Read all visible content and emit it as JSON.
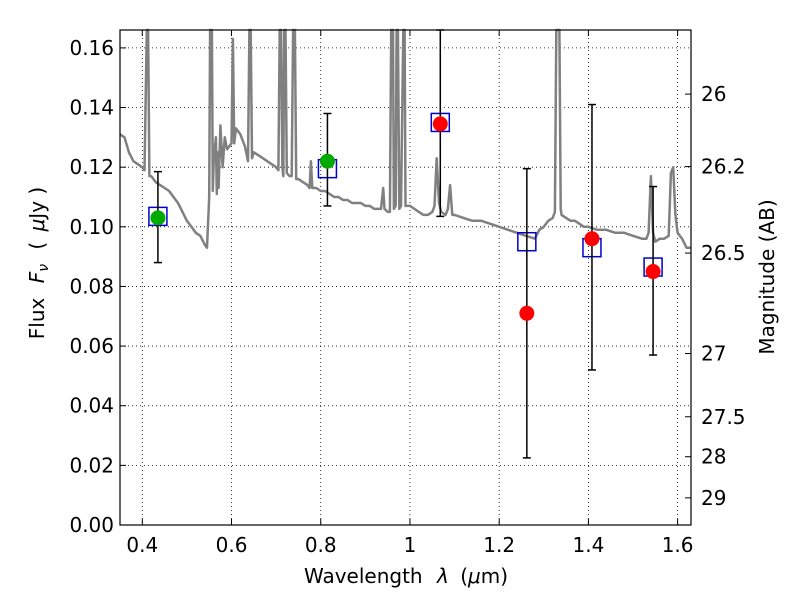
{
  "chart_data": {
    "type": "scatter",
    "xlabel": "Wavelength",
    "xlabel_symbol": "λ",
    "xlabel_unit_open": "(",
    "xlabel_unit_mu": "μ",
    "xlabel_unit_rest": "m)",
    "ylabel": "Flux",
    "ylabel_symbol_F": "F",
    "ylabel_symbol_sub": "ν",
    "ylabel_unit_open": "(",
    "ylabel_unit_mu": "μ",
    "ylabel_unit_rest": "Jy )",
    "y2label": "Magnitude (AB)",
    "xlim": [
      0.35,
      1.63
    ],
    "ylim": [
      0.0,
      0.166
    ],
    "x_ticks": [
      0.4,
      0.6,
      0.8,
      1.0,
      1.2,
      1.4,
      1.6
    ],
    "x_tick_labels": [
      "0.4",
      "0.6",
      "0.8",
      "1",
      "1.2",
      "1.4",
      "1.6"
    ],
    "y_ticks": [
      0.0,
      0.02,
      0.04,
      0.06,
      0.08,
      0.1,
      0.12,
      0.14,
      0.16
    ],
    "y_tick_labels": [
      "0.00",
      "0.02",
      "0.04",
      "0.06",
      "0.08",
      "0.10",
      "0.12",
      "0.14",
      "0.16"
    ],
    "y2_ticks": [
      {
        "label": "26",
        "flux": 0.1445
      },
      {
        "label": "26.2",
        "flux": 0.1202
      },
      {
        "label": "26.5",
        "flux": 0.0912
      },
      {
        "label": "27",
        "flux": 0.0575
      },
      {
        "label": "27.5",
        "flux": 0.0363
      },
      {
        "label": "28",
        "flux": 0.0229
      },
      {
        "label": "29",
        "flux": 0.0091
      }
    ],
    "grid": true,
    "grid_style": "dotted",
    "colors": {
      "spectrum": "#808080",
      "model_box": "#0000cc",
      "obs_green": "#00aa00",
      "obs_red": "#ff0000",
      "error_bar": "#000000"
    },
    "model_points": [
      {
        "x": 0.435,
        "y": 0.1035
      },
      {
        "x": 0.815,
        "y": 0.1195
      },
      {
        "x": 1.068,
        "y": 0.135
      },
      {
        "x": 1.262,
        "y": 0.095
      },
      {
        "x": 1.408,
        "y": 0.093
      },
      {
        "x": 1.545,
        "y": 0.0865
      }
    ],
    "observed_points": [
      {
        "x": 0.435,
        "y": 0.103,
        "yerr_low": 0.088,
        "yerr_high": 0.1185,
        "color": "green"
      },
      {
        "x": 0.815,
        "y": 0.122,
        "yerr_low": 0.107,
        "yerr_high": 0.138,
        "color": "green"
      },
      {
        "x": 1.068,
        "y": 0.1345,
        "yerr_low": 0.1035,
        "yerr_high": 0.1665,
        "color": "red"
      },
      {
        "x": 1.262,
        "y": 0.071,
        "yerr_low": 0.0225,
        "yerr_high": 0.1195,
        "color": "red"
      },
      {
        "x": 1.408,
        "y": 0.096,
        "yerr_low": 0.052,
        "yerr_high": 0.141,
        "color": "red"
      },
      {
        "x": 1.545,
        "y": 0.085,
        "yerr_low": 0.057,
        "yerr_high": 0.1135,
        "color": "red"
      }
    ],
    "spectrum": [
      [
        0.35,
        0.131
      ],
      [
        0.36,
        0.13
      ],
      [
        0.37,
        0.125
      ],
      [
        0.38,
        0.122
      ],
      [
        0.39,
        0.121
      ],
      [
        0.4,
        0.12
      ],
      [
        0.405,
        0.119
      ],
      [
        0.41,
        0.166
      ],
      [
        0.413,
        0.166
      ],
      [
        0.416,
        0.117
      ],
      [
        0.42,
        0.117
      ],
      [
        0.43,
        0.115
      ],
      [
        0.44,
        0.114
      ],
      [
        0.45,
        0.113
      ],
      [
        0.46,
        0.112
      ],
      [
        0.47,
        0.11
      ],
      [
        0.48,
        0.108
      ],
      [
        0.49,
        0.105
      ],
      [
        0.5,
        0.102
      ],
      [
        0.51,
        0.1
      ],
      [
        0.52,
        0.098
      ],
      [
        0.53,
        0.097
      ],
      [
        0.54,
        0.094
      ],
      [
        0.545,
        0.093
      ],
      [
        0.55,
        0.11
      ],
      [
        0.552,
        0.166
      ],
      [
        0.556,
        0.166
      ],
      [
        0.558,
        0.112
      ],
      [
        0.56,
        0.122
      ],
      [
        0.565,
        0.13
      ],
      [
        0.567,
        0.111
      ],
      [
        0.569,
        0.125
      ],
      [
        0.571,
        0.113
      ],
      [
        0.575,
        0.134
      ],
      [
        0.58,
        0.12
      ],
      [
        0.585,
        0.13
      ],
      [
        0.59,
        0.126
      ],
      [
        0.6,
        0.128
      ],
      [
        0.603,
        0.163
      ],
      [
        0.606,
        0.128
      ],
      [
        0.61,
        0.133
      ],
      [
        0.62,
        0.131
      ],
      [
        0.63,
        0.127
      ],
      [
        0.637,
        0.122
      ],
      [
        0.64,
        0.166
      ],
      [
        0.643,
        0.166
      ],
      [
        0.646,
        0.123
      ],
      [
        0.65,
        0.125
      ],
      [
        0.66,
        0.124
      ],
      [
        0.67,
        0.123
      ],
      [
        0.68,
        0.122
      ],
      [
        0.69,
        0.121
      ],
      [
        0.7,
        0.12
      ],
      [
        0.705,
        0.119
      ],
      [
        0.708,
        0.166
      ],
      [
        0.711,
        0.166
      ],
      [
        0.714,
        0.12
      ],
      [
        0.716,
        0.117
      ],
      [
        0.718,
        0.166
      ],
      [
        0.721,
        0.166
      ],
      [
        0.724,
        0.118
      ],
      [
        0.73,
        0.117
      ],
      [
        0.735,
        0.117
      ],
      [
        0.738,
        0.166
      ],
      [
        0.742,
        0.166
      ],
      [
        0.745,
        0.116
      ],
      [
        0.75,
        0.116
      ],
      [
        0.76,
        0.115
      ],
      [
        0.77,
        0.114
      ],
      [
        0.775,
        0.113
      ],
      [
        0.778,
        0.122
      ],
      [
        0.781,
        0.113
      ],
      [
        0.79,
        0.113
      ],
      [
        0.8,
        0.112
      ],
      [
        0.81,
        0.112
      ],
      [
        0.82,
        0.111
      ],
      [
        0.83,
        0.11
      ],
      [
        0.84,
        0.11
      ],
      [
        0.85,
        0.109
      ],
      [
        0.86,
        0.109
      ],
      [
        0.87,
        0.108
      ],
      [
        0.88,
        0.108
      ],
      [
        0.89,
        0.108
      ],
      [
        0.9,
        0.107
      ],
      [
        0.91,
        0.107
      ],
      [
        0.92,
        0.106
      ],
      [
        0.93,
        0.106
      ],
      [
        0.935,
        0.106
      ],
      [
        0.94,
        0.113
      ],
      [
        0.943,
        0.106
      ],
      [
        0.95,
        0.105
      ],
      [
        0.955,
        0.105
      ],
      [
        0.958,
        0.166
      ],
      [
        0.962,
        0.166
      ],
      [
        0.964,
        0.106
      ],
      [
        0.968,
        0.107
      ],
      [
        0.97,
        0.166
      ],
      [
        0.973,
        0.166
      ],
      [
        0.976,
        0.106
      ],
      [
        0.98,
        0.107
      ],
      [
        0.985,
        0.166
      ],
      [
        0.988,
        0.166
      ],
      [
        0.99,
        0.107
      ],
      [
        1.0,
        0.107
      ],
      [
        1.01,
        0.106
      ],
      [
        1.02,
        0.105
      ],
      [
        1.03,
        0.104
      ],
      [
        1.04,
        0.104
      ],
      [
        1.05,
        0.105
      ],
      [
        1.055,
        0.107
      ],
      [
        1.06,
        0.123
      ],
      [
        1.065,
        0.108
      ],
      [
        1.07,
        0.105
      ],
      [
        1.08,
        0.104
      ],
      [
        1.085,
        0.106
      ],
      [
        1.09,
        0.114
      ],
      [
        1.095,
        0.104
      ],
      [
        1.1,
        0.104
      ],
      [
        1.12,
        0.103
      ],
      [
        1.14,
        0.102
      ],
      [
        1.16,
        0.102
      ],
      [
        1.18,
        0.101
      ],
      [
        1.2,
        0.1
      ],
      [
        1.22,
        0.099
      ],
      [
        1.24,
        0.098
      ],
      [
        1.26,
        0.097
      ],
      [
        1.28,
        0.096
      ],
      [
        1.29,
        0.099
      ],
      [
        1.3,
        0.1
      ],
      [
        1.31,
        0.102
      ],
      [
        1.32,
        0.103
      ],
      [
        1.325,
        0.105
      ],
      [
        1.328,
        0.166
      ],
      [
        1.335,
        0.166
      ],
      [
        1.338,
        0.106
      ],
      [
        1.34,
        0.104
      ],
      [
        1.35,
        0.103
      ],
      [
        1.36,
        0.102
      ],
      [
        1.37,
        0.102
      ],
      [
        1.38,
        0.101
      ],
      [
        1.39,
        0.1
      ],
      [
        1.4,
        0.1
      ],
      [
        1.42,
        0.099
      ],
      [
        1.44,
        0.099
      ],
      [
        1.46,
        0.098
      ],
      [
        1.48,
        0.098
      ],
      [
        1.5,
        0.097
      ],
      [
        1.52,
        0.096
      ],
      [
        1.53,
        0.096
      ],
      [
        1.535,
        0.098
      ],
      [
        1.54,
        0.117
      ],
      [
        1.545,
        0.098
      ],
      [
        1.55,
        0.095
      ],
      [
        1.56,
        0.096
      ],
      [
        1.57,
        0.096
      ],
      [
        1.58,
        0.097
      ],
      [
        1.585,
        0.118
      ],
      [
        1.59,
        0.12
      ],
      [
        1.595,
        0.104
      ],
      [
        1.6,
        0.098
      ],
      [
        1.61,
        0.096
      ],
      [
        1.62,
        0.093
      ],
      [
        1.63,
        0.093
      ]
    ]
  }
}
